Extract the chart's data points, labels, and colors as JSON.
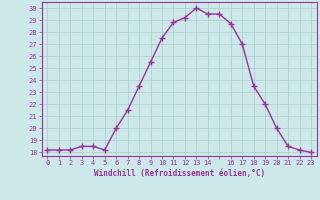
{
  "x": [
    0,
    1,
    2,
    3,
    4,
    5,
    6,
    7,
    8,
    9,
    10,
    11,
    12,
    13,
    14,
    15,
    16,
    17,
    18,
    19,
    20,
    21,
    22,
    23
  ],
  "y": [
    18.2,
    18.2,
    18.2,
    18.5,
    18.5,
    18.2,
    20.0,
    21.5,
    23.5,
    25.5,
    27.5,
    28.8,
    29.2,
    30.0,
    29.5,
    29.5,
    28.7,
    27.0,
    23.5,
    22.0,
    20.0,
    18.5,
    18.2,
    18.0
  ],
  "line_color": "#993399",
  "marker": "+",
  "marker_size": 4,
  "bg_color": "#cce8e8",
  "grid_color": "#aacccc",
  "xlabel": "Windchill (Refroidissement éolien,°C)",
  "ylabel_ticks": [
    18,
    19,
    20,
    21,
    22,
    23,
    24,
    25,
    26,
    27,
    28,
    29,
    30
  ],
  "xtick_labels": [
    "0",
    "1",
    "2",
    "3",
    "4",
    "5",
    "6",
    "7",
    "8",
    "9",
    "10",
    "11",
    "12",
    "13",
    "14",
    "",
    "16",
    "17",
    "18",
    "19",
    "20",
    "21",
    "22",
    "23"
  ],
  "xlim": [
    -0.5,
    23.5
  ],
  "ylim": [
    17.7,
    30.5
  ]
}
